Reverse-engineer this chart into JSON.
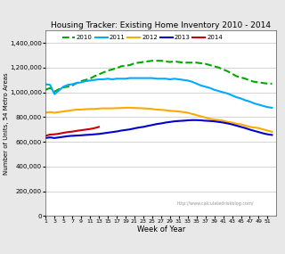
{
  "title": "Housing Tracker: Existing Home Inventory 2010 - 2014",
  "xlabel": "Week of Year",
  "ylabel": "Number of Units, 54 Metro Areas",
  "watermark": "http://www.calculatedriskblog.com/",
  "fig_color": "#e8e8e8",
  "plot_bg_color": "#ffffff",
  "ylim": [
    0,
    1500000
  ],
  "yticks": [
    0,
    200000,
    400000,
    600000,
    800000,
    1000000,
    1200000,
    1400000
  ],
  "xlim": [
    1,
    53
  ],
  "xticks": [
    1,
    3,
    5,
    7,
    9,
    11,
    13,
    15,
    17,
    19,
    21,
    23,
    25,
    27,
    29,
    31,
    33,
    35,
    37,
    39,
    41,
    43,
    45,
    47,
    49,
    51
  ],
  "series": {
    "2010": {
      "color": "#00aa00",
      "linestyle": "--",
      "linewidth": 1.5,
      "weeks": [
        1,
        2,
        3,
        4,
        5,
        6,
        7,
        8,
        9,
        10,
        11,
        12,
        13,
        14,
        15,
        16,
        17,
        18,
        19,
        20,
        21,
        22,
        23,
        24,
        25,
        26,
        27,
        28,
        29,
        30,
        31,
        32,
        33,
        34,
        35,
        36,
        37,
        38,
        39,
        40,
        41,
        42,
        43,
        44,
        45,
        46,
        47,
        48,
        49,
        50,
        51,
        52
      ],
      "values": [
        1020000,
        1035000,
        1005000,
        1025000,
        1040000,
        1045000,
        1055000,
        1075000,
        1090000,
        1100000,
        1110000,
        1130000,
        1145000,
        1160000,
        1175000,
        1185000,
        1195000,
        1210000,
        1215000,
        1220000,
        1235000,
        1240000,
        1245000,
        1250000,
        1255000,
        1255000,
        1255000,
        1250000,
        1245000,
        1250000,
        1245000,
        1240000,
        1240000,
        1240000,
        1240000,
        1235000,
        1230000,
        1220000,
        1210000,
        1200000,
        1185000,
        1170000,
        1150000,
        1130000,
        1120000,
        1110000,
        1095000,
        1085000,
        1080000,
        1075000,
        1070000,
        1070000
      ]
    },
    "2011": {
      "color": "#00aaff",
      "linestyle": "-",
      "linewidth": 1.5,
      "weeks": [
        1,
        2,
        3,
        4,
        5,
        6,
        7,
        8,
        9,
        10,
        11,
        12,
        13,
        14,
        15,
        16,
        17,
        18,
        19,
        20,
        21,
        22,
        23,
        24,
        25,
        26,
        27,
        28,
        29,
        30,
        31,
        32,
        33,
        34,
        35,
        36,
        37,
        38,
        39,
        40,
        41,
        42,
        43,
        44,
        45,
        46,
        47,
        48,
        49,
        50,
        51,
        52
      ],
      "values": [
        1065000,
        1060000,
        985000,
        1015000,
        1045000,
        1060000,
        1065000,
        1075000,
        1080000,
        1090000,
        1095000,
        1100000,
        1105000,
        1105000,
        1110000,
        1105000,
        1110000,
        1110000,
        1110000,
        1115000,
        1115000,
        1115000,
        1115000,
        1115000,
        1115000,
        1110000,
        1110000,
        1110000,
        1105000,
        1110000,
        1105000,
        1100000,
        1095000,
        1085000,
        1070000,
        1055000,
        1045000,
        1035000,
        1020000,
        1010000,
        1000000,
        990000,
        975000,
        960000,
        950000,
        935000,
        925000,
        910000,
        900000,
        890000,
        880000,
        875000
      ]
    },
    "2012": {
      "color": "#ffaa00",
      "linestyle": "-",
      "linewidth": 1.5,
      "weeks": [
        1,
        2,
        3,
        4,
        5,
        6,
        7,
        8,
        9,
        10,
        11,
        12,
        13,
        14,
        15,
        16,
        17,
        18,
        19,
        20,
        21,
        22,
        23,
        24,
        25,
        26,
        27,
        28,
        29,
        30,
        31,
        32,
        33,
        34,
        35,
        36,
        37,
        38,
        39,
        40,
        41,
        42,
        43,
        44,
        45,
        46,
        47,
        48,
        49,
        50,
        51,
        52
      ],
      "values": [
        835000,
        840000,
        835000,
        840000,
        845000,
        850000,
        855000,
        860000,
        860000,
        863000,
        865000,
        865000,
        868000,
        870000,
        870000,
        870000,
        872000,
        873000,
        875000,
        875000,
        873000,
        872000,
        870000,
        868000,
        865000,
        860000,
        858000,
        855000,
        850000,
        848000,
        845000,
        840000,
        835000,
        825000,
        815000,
        805000,
        795000,
        785000,
        780000,
        775000,
        770000,
        760000,
        755000,
        745000,
        740000,
        730000,
        720000,
        715000,
        710000,
        700000,
        690000,
        680000
      ]
    },
    "2013": {
      "color": "#0000cc",
      "linestyle": "-",
      "linewidth": 1.5,
      "weeks": [
        1,
        2,
        3,
        4,
        5,
        6,
        7,
        8,
        9,
        10,
        11,
        12,
        13,
        14,
        15,
        16,
        17,
        18,
        19,
        20,
        21,
        22,
        23,
        24,
        25,
        26,
        27,
        28,
        29,
        30,
        31,
        32,
        33,
        34,
        35,
        36,
        37,
        38,
        39,
        40,
        41,
        42,
        43,
        44,
        45,
        46,
        47,
        48,
        49,
        50,
        51,
        52
      ],
      "values": [
        630000,
        635000,
        630000,
        635000,
        640000,
        645000,
        648000,
        650000,
        652000,
        655000,
        657000,
        660000,
        663000,
        668000,
        673000,
        678000,
        683000,
        690000,
        695000,
        700000,
        708000,
        715000,
        720000,
        728000,
        735000,
        743000,
        748000,
        755000,
        760000,
        765000,
        768000,
        770000,
        773000,
        775000,
        775000,
        773000,
        770000,
        768000,
        765000,
        760000,
        755000,
        748000,
        740000,
        730000,
        720000,
        710000,
        698000,
        688000,
        678000,
        668000,
        660000,
        655000
      ]
    },
    "2014": {
      "color": "#cc0000",
      "linestyle": "-",
      "linewidth": 1.5,
      "weeks": [
        1,
        2,
        3,
        4,
        5,
        6,
        7,
        8,
        9,
        10,
        11,
        12,
        13
      ],
      "values": [
        648000,
        658000,
        660000,
        665000,
        672000,
        678000,
        682000,
        688000,
        693000,
        698000,
        703000,
        710000,
        720000
      ]
    }
  }
}
